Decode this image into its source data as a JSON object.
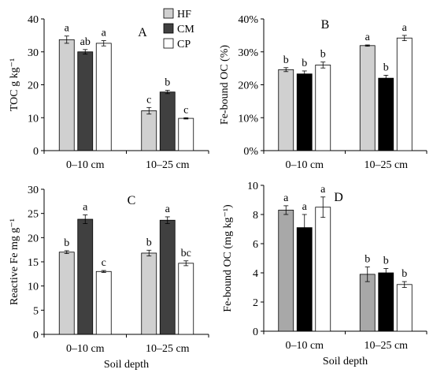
{
  "legend": [
    {
      "label": "HF",
      "color": "#d0d0d0"
    },
    {
      "label": "CM",
      "color": "#404040"
    },
    {
      "label": "CP",
      "color": "#ffffff"
    }
  ],
  "chart_data": [
    {
      "panel": "A",
      "type": "bar",
      "ylabel": "TOC g kg⁻¹",
      "xlabel": "",
      "categories": [
        "0–10 cm",
        "10–25 cm"
      ],
      "ylim": [
        0,
        40
      ],
      "yticks": [
        "0",
        "10",
        "20",
        "30",
        "40"
      ],
      "tickvals": [
        0,
        10,
        20,
        30,
        40
      ],
      "colors": [
        "#d0d0d0",
        "#404040",
        "#ffffff"
      ],
      "series": [
        {
          "name": "HF",
          "values": [
            33.7,
            12.1
          ],
          "errors": [
            1.1,
            1.0
          ],
          "letters": [
            "a",
            "c"
          ]
        },
        {
          "name": "CM",
          "values": [
            30.0,
            17.8
          ],
          "errors": [
            0.7,
            0.5
          ],
          "letters": [
            "ab",
            "b"
          ]
        },
        {
          "name": "CP",
          "values": [
            32.6,
            9.8
          ],
          "errors": [
            0.8,
            0.2
          ],
          "letters": [
            "a",
            "c"
          ]
        }
      ]
    },
    {
      "panel": "B",
      "type": "bar",
      "ylabel": "Fe-bound OC (%)",
      "xlabel": "",
      "categories": [
        "0–10 cm",
        "10–25 cm"
      ],
      "ylim": [
        0,
        40
      ],
      "yticks": [
        "0%",
        "10%",
        "20%",
        "30%",
        "40%"
      ],
      "tickvals": [
        0,
        10,
        20,
        30,
        40
      ],
      "colors": [
        "#d0d0d0",
        "#000000",
        "#ffffff"
      ],
      "series": [
        {
          "name": "HF",
          "values": [
            24.6,
            31.9
          ],
          "errors": [
            0.6,
            0.2
          ],
          "letters": [
            "b",
            "a"
          ]
        },
        {
          "name": "CM",
          "values": [
            23.3,
            22.0
          ],
          "errors": [
            0.9,
            0.9
          ],
          "letters": [
            "b",
            "b"
          ]
        },
        {
          "name": "CP",
          "values": [
            26.0,
            34.2
          ],
          "errors": [
            0.9,
            0.8
          ],
          "letters": [
            "b",
            "a"
          ]
        }
      ]
    },
    {
      "panel": "C",
      "type": "bar",
      "ylabel": "Reactive Fe mg g⁻¹",
      "xlabel": "Soil depth",
      "categories": [
        "0–10 cm",
        "10–25 cm"
      ],
      "ylim": [
        0,
        30
      ],
      "yticks": [
        "0",
        "5",
        "10",
        "15",
        "20",
        "25",
        "30"
      ],
      "tickvals": [
        0,
        5,
        10,
        15,
        20,
        25,
        30
      ],
      "colors": [
        "#d0d0d0",
        "#404040",
        "#ffffff"
      ],
      "series": [
        {
          "name": "HF",
          "values": [
            17.0,
            16.8
          ],
          "errors": [
            0.3,
            0.6
          ],
          "letters": [
            "b",
            "b"
          ]
        },
        {
          "name": "CM",
          "values": [
            23.8,
            23.6
          ],
          "errors": [
            0.9,
            0.7
          ],
          "letters": [
            "a",
            "a"
          ]
        },
        {
          "name": "CP",
          "values": [
            13.0,
            14.7
          ],
          "errors": [
            0.2,
            0.5
          ],
          "letters": [
            "c",
            "bc"
          ]
        }
      ]
    },
    {
      "panel": "D",
      "type": "bar",
      "ylabel": "Fe-bound OC (mg kg⁻¹)",
      "xlabel": "Soil depth",
      "categories": [
        "0–10 cm",
        "10–25 cm"
      ],
      "ylim": [
        0,
        10
      ],
      "yticks": [
        "0",
        "2",
        "4",
        "6",
        "8",
        "10"
      ],
      "tickvals": [
        0,
        2,
        4,
        6,
        8,
        10
      ],
      "colors": [
        "#a8a8a8",
        "#000000",
        "#ffffff"
      ],
      "series": [
        {
          "name": "HF",
          "values": [
            8.3,
            3.9
          ],
          "errors": [
            0.3,
            0.5
          ],
          "letters": [
            "a",
            "b"
          ]
        },
        {
          "name": "CM",
          "values": [
            7.1,
            4.0
          ],
          "errors": [
            0.9,
            0.3
          ],
          "letters": [
            "a",
            "b"
          ]
        },
        {
          "name": "CP",
          "values": [
            8.5,
            3.2
          ],
          "errors": [
            0.7,
            0.2
          ],
          "letters": [
            "a",
            "b"
          ]
        }
      ]
    }
  ]
}
